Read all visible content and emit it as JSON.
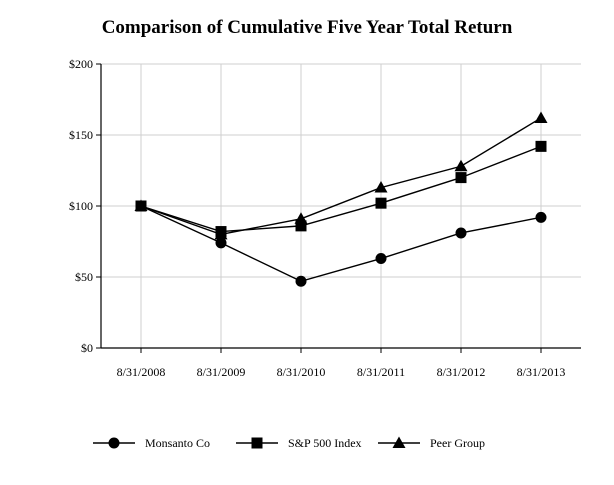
{
  "chart_data": {
    "type": "line",
    "title": "Comparison of Cumulative Five Year Total Return",
    "xlabel": "",
    "ylabel": "",
    "categories": [
      "8/31/2008",
      "8/31/2009",
      "8/31/2010",
      "8/31/2011",
      "8/31/2012",
      "8/31/2013"
    ],
    "yticks": [
      "$0",
      "$50",
      "$100",
      "$150",
      "$200"
    ],
    "ylim": [
      0,
      200
    ],
    "grid": true,
    "legend_position": "bottom",
    "series": [
      {
        "name": "Monsanto Co",
        "marker": "circle",
        "values": [
          100,
          74,
          47,
          63,
          81,
          92
        ]
      },
      {
        "name": "S&P 500 Index",
        "marker": "square",
        "values": [
          100,
          82,
          86,
          102,
          120,
          142
        ]
      },
      {
        "name": "Peer Group",
        "marker": "triangle",
        "values": [
          100,
          80,
          91,
          113,
          128,
          162
        ]
      }
    ]
  }
}
